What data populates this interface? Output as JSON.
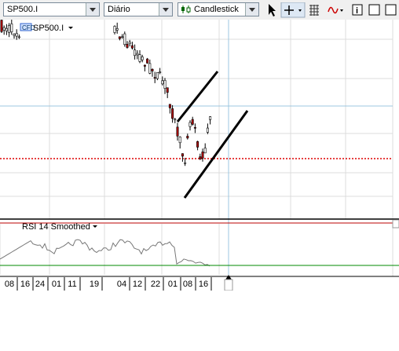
{
  "toolbar": {
    "symbol": "SP500.I",
    "period": "Diário",
    "chart_type": "Candlestick"
  },
  "chart": {
    "badge": "CFD",
    "symbol_label": "SP500.I"
  },
  "rsi": {
    "label": "RSI 14 Smoothed"
  },
  "x_axis": {
    "labels": [
      "08",
      "16",
      "24",
      "01",
      "11",
      "19",
      "04",
      "12",
      "22",
      "01",
      "08",
      "16"
    ]
  }
}
